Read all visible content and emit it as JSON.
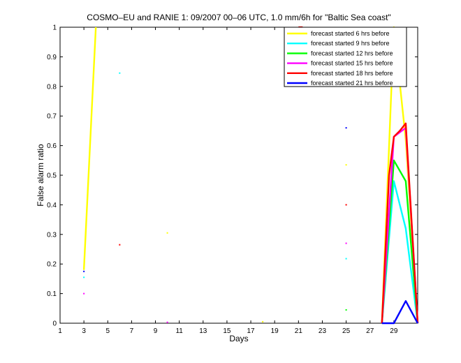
{
  "chart_data": {
    "type": "line",
    "title": "COSMO–EU and RANIE 1: 09/2007 00–06 UTC, 1.0 mm/6h for \"Baltic Sea coast\"",
    "xlabel": "Days",
    "ylabel": "False alarm ratio",
    "xlim": [
      1,
      31
    ],
    "ylim": [
      0,
      1
    ],
    "xticks": [
      1,
      3,
      5,
      7,
      9,
      11,
      13,
      15,
      17,
      19,
      21,
      23,
      25,
      27,
      29
    ],
    "xtick_labels": [
      "1",
      "3",
      "5",
      "7",
      "9",
      "11",
      "13",
      "15",
      "17",
      "19",
      "21",
      "23",
      "25",
      "27",
      "29"
    ],
    "yticks": [
      0,
      0.1,
      0.2,
      0.3,
      0.4,
      0.5,
      0.6,
      0.7,
      0.8,
      0.9,
      1
    ],
    "ytick_labels": [
      "0",
      "0.1",
      "0.2",
      "0.3",
      "0.4",
      "0.5",
      "0.6",
      "0.7",
      "0.8",
      "0.9",
      "1"
    ],
    "legend_position": "top-right",
    "series": [
      {
        "name": "forecast started 6 hrs before",
        "color": "#ffff00",
        "lines": [
          [
            [
              3,
              0.18
            ],
            [
              4,
              1.0
            ]
          ],
          [
            [
              28,
              0.0
            ],
            [
              29,
              1.0
            ],
            [
              30,
              0.62
            ],
            [
              31,
              0.0
            ]
          ]
        ],
        "points": [
          [
            10,
            0.305
          ],
          [
            18,
            0.005
          ],
          [
            25,
            0.535
          ]
        ]
      },
      {
        "name": "forecast started 9 hrs before",
        "color": "#00ffff",
        "lines": [
          [
            [
              28,
              0.0
            ],
            [
              29,
              0.48
            ],
            [
              30,
              0.32
            ],
            [
              31,
              0.0
            ]
          ]
        ],
        "points": [
          [
            3,
            0.155
          ],
          [
            6,
            0.845
          ],
          [
            25,
            0.218
          ]
        ]
      },
      {
        "name": "forecast started 12 hrs before",
        "color": "#00ff00",
        "lines": [
          [
            [
              28,
              0.0
            ],
            [
              29,
              0.55
            ],
            [
              30,
              0.48
            ],
            [
              31,
              0.0
            ]
          ]
        ],
        "points": [
          [
            25,
            0.045
          ]
        ]
      },
      {
        "name": "forecast started 15 hrs before",
        "color": "#ff00ff",
        "lines": [
          [
            [
              28,
              0.0
            ],
            [
              29,
              0.63
            ],
            [
              30,
              0.66
            ],
            [
              31,
              0.0
            ]
          ]
        ],
        "points": [
          [
            3,
            0.1
          ],
          [
            10,
            0.003
          ],
          [
            25,
            0.27
          ]
        ]
      },
      {
        "name": "forecast started 18 hrs before",
        "color": "#ff0000",
        "lines": [
          [
            [
              21,
              1.0
            ],
            [
              21.35,
              1.0
            ]
          ],
          [
            [
              28,
              0.0
            ],
            [
              28.6,
              0.5
            ],
            [
              29,
              0.63
            ],
            [
              29.5,
              0.65
            ],
            [
              30,
              0.675
            ],
            [
              31,
              0.0
            ]
          ]
        ],
        "points": [
          [
            6,
            0.265
          ],
          [
            25,
            0.4
          ]
        ]
      },
      {
        "name": "forecast started 21 hrs before",
        "color": "#0000ff",
        "lines": [
          [
            [
              28,
              0.0
            ],
            [
              29,
              0.0
            ],
            [
              30,
              0.075
            ],
            [
              31,
              0.0
            ]
          ]
        ],
        "points": [
          [
            3,
            0.175
          ],
          [
            25,
            0.66
          ]
        ]
      }
    ]
  }
}
